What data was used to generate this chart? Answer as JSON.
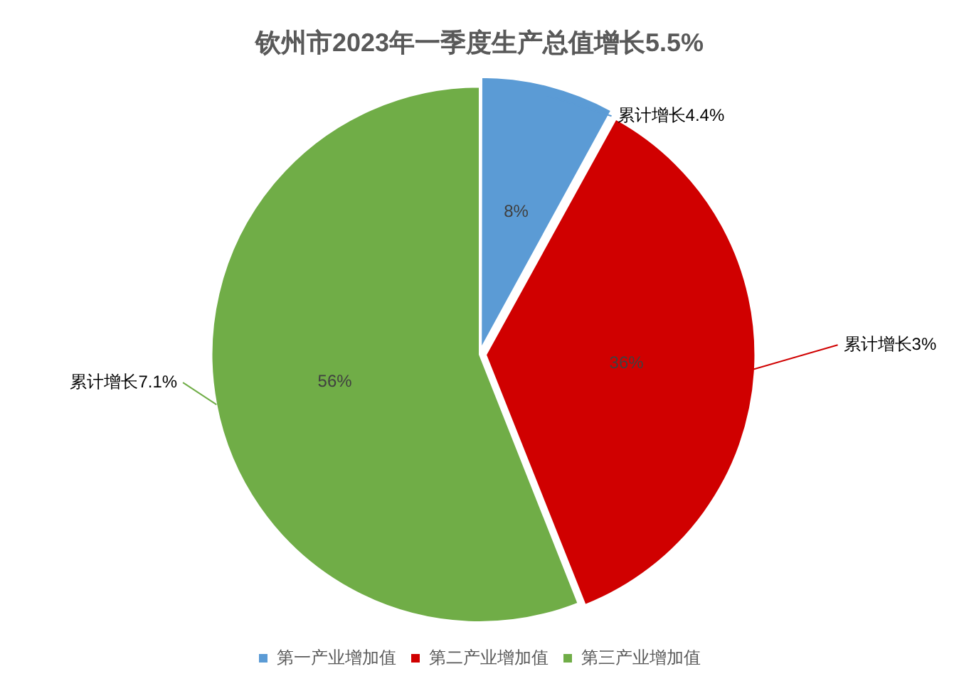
{
  "chart_data": {
    "type": "pie",
    "title": "钦州市2023年一季度生产总值增长5.5%",
    "categories": [
      "第一产业增加值",
      "第二产业增加值",
      "第三产业增加值"
    ],
    "values": [
      8,
      36,
      56
    ],
    "colors": [
      "#5b9bd5",
      "#d00000",
      "#70ad47"
    ],
    "value_labels": [
      "8%",
      "36%",
      "56%"
    ],
    "legend": "bottom",
    "annotations": [
      {
        "text": "累计增长4.4%",
        "x": "第一产业增加值"
      },
      {
        "text": "累计增长3%",
        "x": "第二产业增加值"
      },
      {
        "text": "累计增长7.1%",
        "x": "第三产业增加值"
      }
    ]
  }
}
